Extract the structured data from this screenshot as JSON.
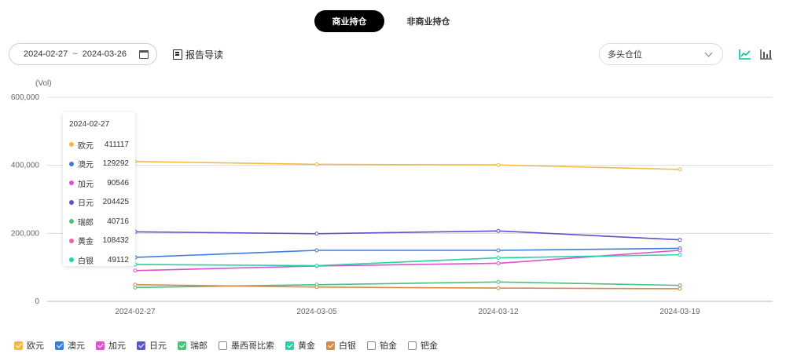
{
  "tabs": [
    {
      "label": "商业持仓",
      "active": true
    },
    {
      "label": "非商业持仓",
      "active": false
    }
  ],
  "toolbar": {
    "date_start": "2024-02-27",
    "date_sep": "~",
    "date_end": "2024-03-26",
    "report_label": "报告导读",
    "select_value": "多头仓位",
    "accent": "#00bfa5"
  },
  "tooltip": {
    "title": "2024-02-27",
    "rows": [
      {
        "name": "欧元",
        "value": "411117",
        "color": "#f4b942"
      },
      {
        "name": "澳元",
        "value": "129292",
        "color": "#3b7ddd"
      },
      {
        "name": "加元",
        "value": "90546",
        "color": "#e04fd0"
      },
      {
        "name": "日元",
        "value": "204425",
        "color": "#5a55c9"
      },
      {
        "name": "瑞郎",
        "value": "40716",
        "color": "#4ec07b"
      },
      {
        "name": "黄金",
        "value": "108432",
        "color": "#f062a8"
      },
      {
        "name": "白银",
        "value": "49112",
        "color": "#1ed6a8"
      }
    ]
  },
  "chart_data": {
    "type": "line",
    "unit_label": "(Vol)",
    "categories": [
      "2024-02-27",
      "2024-03-05",
      "2024-03-12",
      "2024-03-19"
    ],
    "ylim": [
      0,
      600000
    ],
    "yticks": [
      "0",
      "200,000",
      "400,000",
      "600,000"
    ],
    "ytick_values": [
      0,
      200000,
      400000,
      600000
    ],
    "grid": true,
    "series": [
      {
        "name": "欧元",
        "color": "#f4b942",
        "values": [
          411117,
          403000,
          401000,
          388000
        ]
      },
      {
        "name": "日元",
        "color": "#5a55c9",
        "values": [
          204425,
          199000,
          207000,
          181000
        ]
      },
      {
        "name": "澳元",
        "color": "#3b7ddd",
        "values": [
          129292,
          150000,
          150000,
          156000
        ]
      },
      {
        "name": "加元",
        "color": "#e04fd0",
        "values": [
          90546,
          104000,
          112000,
          150000
        ]
      },
      {
        "name": "黄金",
        "color": "#1ed6a8",
        "values": [
          108432,
          105000,
          128000,
          137000
        ]
      },
      {
        "name": "瑞郎",
        "color": "#4ec07b",
        "values": [
          40716,
          49000,
          57000,
          47000
        ]
      },
      {
        "name": "白银",
        "color": "#d98b4a",
        "values": [
          49112,
          42000,
          39000,
          37000
        ]
      }
    ]
  },
  "legend": [
    {
      "name": "欧元",
      "color": "#f4b942",
      "checked": true
    },
    {
      "name": "澳元",
      "color": "#3b7ddd",
      "checked": true
    },
    {
      "name": "加元",
      "color": "#e04fd0",
      "checked": true
    },
    {
      "name": "日元",
      "color": "#5a55c9",
      "checked": true
    },
    {
      "name": "瑞郎",
      "color": "#4ec07b",
      "checked": true
    },
    {
      "name": "墨西哥比索",
      "color": "#888888",
      "checked": false
    },
    {
      "name": "黄金",
      "color": "#1ed6a8",
      "checked": true
    },
    {
      "name": "白银",
      "color": "#d98b4a",
      "checked": true
    },
    {
      "name": "铂金",
      "color": "#888888",
      "checked": false
    },
    {
      "name": "钯金",
      "color": "#888888",
      "checked": false
    }
  ]
}
